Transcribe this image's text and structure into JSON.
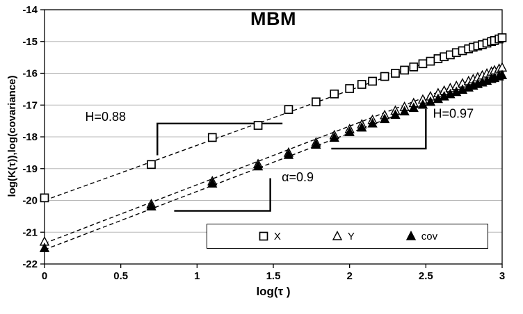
{
  "chart_data": {
    "type": "scatter",
    "title": "MBM",
    "xlabel": "log(τ )",
    "ylabel": "log(K(τ)),log(covariance)",
    "xlim": [
      0,
      3
    ],
    "ylim": [
      -22,
      -14
    ],
    "grid": "horizontal",
    "legend_position": "bottom-inside",
    "xticks": [
      0,
      0.5,
      1,
      1.5,
      2,
      2.5,
      3
    ],
    "xtick_labels": [
      "0",
      "0.5",
      "1",
      "1.5",
      "2",
      "2.5",
      "3"
    ],
    "yticks": [
      -14,
      -15,
      -16,
      -17,
      -18,
      -19,
      -20,
      -21,
      -22
    ],
    "series": [
      {
        "name": "X",
        "marker": "open-square",
        "trend": [
          [
            0,
            -20.0
          ],
          [
            3,
            -14.8
          ]
        ],
        "x": [
          0,
          0.7,
          1.1,
          1.4,
          1.6,
          1.78,
          1.9,
          2.0,
          2.08,
          2.15,
          2.23,
          2.3,
          2.36,
          2.42,
          2.48,
          2.53,
          2.58,
          2.62,
          2.66,
          2.7,
          2.74,
          2.78,
          2.81,
          2.84,
          2.87,
          2.9,
          2.93,
          2.95,
          2.98,
          3.0
        ],
        "y": [
          -19.92,
          -18.87,
          -18.02,
          -17.64,
          -17.14,
          -16.9,
          -16.65,
          -16.48,
          -16.35,
          -16.25,
          -16.1,
          -16.0,
          -15.9,
          -15.8,
          -15.7,
          -15.62,
          -15.54,
          -15.48,
          -15.42,
          -15.35,
          -15.29,
          -15.23,
          -15.18,
          -15.14,
          -15.1,
          -15.05,
          -15.0,
          -14.97,
          -14.92,
          -14.88
        ]
      },
      {
        "name": "Y",
        "marker": "open-triangle",
        "trend": [
          [
            0,
            -21.35
          ],
          [
            3,
            -15.82
          ]
        ],
        "x": [
          0,
          0.7,
          1.1,
          1.4,
          1.6,
          1.78,
          1.9,
          2.0,
          2.08,
          2.15,
          2.23,
          2.3,
          2.36,
          2.42,
          2.48,
          2.53,
          2.58,
          2.62,
          2.66,
          2.7,
          2.74,
          2.78,
          2.81,
          2.84,
          2.87,
          2.9,
          2.93,
          2.95,
          2.98,
          3.0
        ],
        "y": [
          -21.3,
          -20.12,
          -19.4,
          -18.86,
          -18.5,
          -18.18,
          -17.95,
          -17.76,
          -17.61,
          -17.47,
          -17.32,
          -17.18,
          -17.06,
          -16.94,
          -16.83,
          -16.73,
          -16.63,
          -16.55,
          -16.47,
          -16.4,
          -16.32,
          -16.25,
          -16.19,
          -16.13,
          -16.07,
          -16.01,
          -15.95,
          -15.91,
          -15.86,
          -15.82
        ]
      },
      {
        "name": "cov",
        "marker": "filled-triangle",
        "trend": [
          [
            0,
            -21.55
          ],
          [
            3,
            -16.05
          ]
        ],
        "x": [
          0,
          0.7,
          1.1,
          1.4,
          1.6,
          1.78,
          1.9,
          2.0,
          2.08,
          2.15,
          2.23,
          2.3,
          2.36,
          2.42,
          2.48,
          2.53,
          2.58,
          2.62,
          2.66,
          2.7,
          2.74,
          2.78,
          2.81,
          2.84,
          2.87,
          2.9,
          2.93,
          2.95,
          2.98,
          3.0
        ],
        "y": [
          -21.5,
          -20.19,
          -19.47,
          -18.93,
          -18.57,
          -18.25,
          -18.03,
          -17.85,
          -17.71,
          -17.58,
          -17.44,
          -17.31,
          -17.2,
          -17.09,
          -16.99,
          -16.9,
          -16.81,
          -16.73,
          -16.66,
          -16.59,
          -16.52,
          -16.45,
          -16.39,
          -16.34,
          -16.29,
          -16.24,
          -16.18,
          -16.15,
          -16.1,
          -16.06
        ]
      }
    ],
    "annotations": [
      {
        "text": "H=0.88",
        "x": 0.4,
        "y": -17.5,
        "shape": [
          [
            0.74,
            -18.58
          ],
          [
            0.74,
            -17.58
          ],
          [
            1.56,
            -17.58
          ]
        ]
      },
      {
        "text": "α=0.9",
        "x": 1.66,
        "y": -19.4,
        "shape": [
          [
            0.85,
            -20.33
          ],
          [
            1.48,
            -20.33
          ],
          [
            1.48,
            -19.3
          ]
        ]
      },
      {
        "text": "H=0.97",
        "x": 2.68,
        "y": -17.4,
        "shape": [
          [
            1.88,
            -18.37
          ],
          [
            2.5,
            -18.37
          ],
          [
            2.5,
            -17.12
          ]
        ]
      }
    ],
    "legend": {
      "items": [
        {
          "label": "X",
          "marker": "open-square"
        },
        {
          "label": "Y",
          "marker": "open-triangle"
        },
        {
          "label": "cov",
          "marker": "filled-triangle"
        }
      ]
    },
    "colors": {
      "marker_stroke": "#000000",
      "gridline": "#b8b8b8",
      "trend_line": "#000000",
      "background": "#ffffff"
    }
  }
}
